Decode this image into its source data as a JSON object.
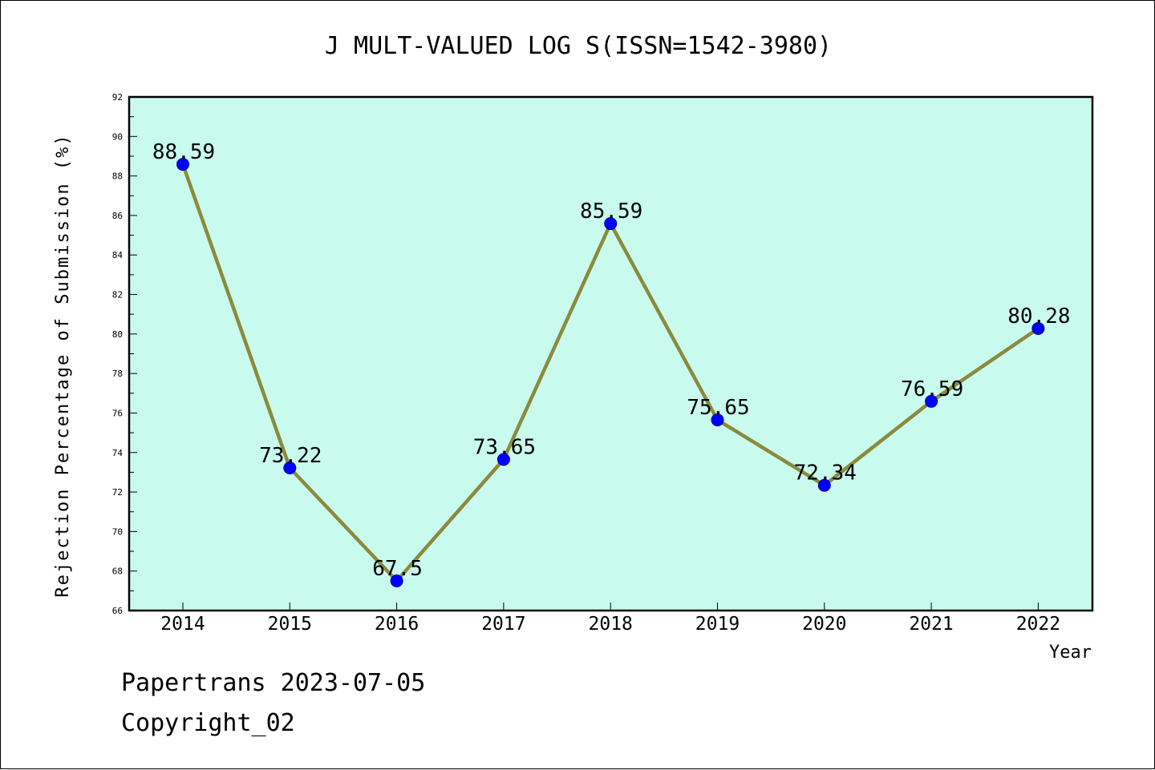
{
  "chart_data": {
    "type": "line",
    "title": "J MULT-VALUED LOG S(ISSN=1542-3980)",
    "xlabel": "Year",
    "ylabel": "Rejection Percentage of Submission (%)",
    "categories": [
      "2014",
      "2015",
      "2016",
      "2017",
      "2018",
      "2019",
      "2020",
      "2021",
      "2022"
    ],
    "values": [
      88.59,
      73.22,
      67.5,
      73.65,
      85.59,
      75.65,
      72.34,
      76.59,
      80.28
    ],
    "data_labels": [
      "88.59",
      "73.22",
      "67.5",
      "73.65",
      "85.59",
      "75.65",
      "72.34",
      "76.59",
      "80.28"
    ],
    "ylim": [
      66,
      92
    ],
    "yticks": [
      "66",
      "68",
      "70",
      "72",
      "74",
      "76",
      "78",
      "80",
      "82",
      "84",
      "86",
      "88",
      "90",
      "92"
    ],
    "grid": false,
    "colors": {
      "plot_background": "#c8fbee",
      "line": "#8b8a3c",
      "marker": "#0000ff",
      "marker_edge": "#0000aa"
    }
  },
  "footer": {
    "line1": "Papertrans 2023-07-05",
    "line2": "Copyright_02"
  }
}
